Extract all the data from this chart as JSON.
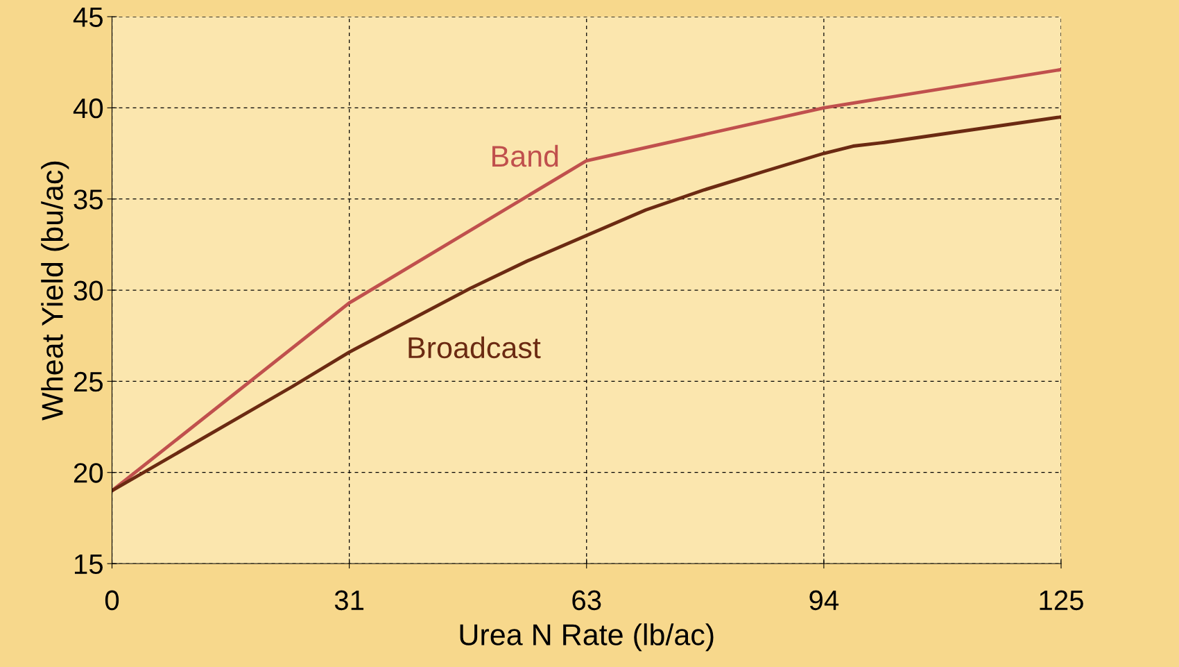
{
  "chart_data": {
    "type": "line",
    "xlabel": "Urea N Rate (lb/ac)",
    "ylabel": "Wheat Yield (bu/ac)",
    "xlim": [
      0,
      125
    ],
    "ylim": [
      15,
      45
    ],
    "xticks": [
      0,
      {
        "value": 31.25,
        "label": "31"
      },
      {
        "value": 62.5,
        "label": "63"
      },
      {
        "value": 93.75,
        "label": "94"
      },
      125
    ],
    "yticks": [
      15,
      20,
      25,
      30,
      35,
      40,
      45
    ],
    "grid": true,
    "legend": false,
    "marker": "none",
    "line_style": "solid",
    "series": [
      {
        "name": "Band",
        "color": "#c0504d",
        "x": [
          0,
          31.25,
          62.5,
          93.75,
          125
        ],
        "values": [
          19.0,
          29.3,
          37.1,
          40.0,
          42.1
        ]
      },
      {
        "name": "Broadcast",
        "color": "#6b2a12",
        "x": [
          0,
          23.7,
          31.25,
          47.2,
          54.7,
          62.5,
          70.3,
          78.0,
          85.8,
          93.75,
          97.6,
          101.7,
          125
        ],
        "values": [
          19.0,
          24.7,
          26.6,
          30.1,
          31.6,
          33.0,
          34.4,
          35.5,
          36.5,
          37.5,
          37.9,
          38.1,
          39.5
        ]
      }
    ]
  }
}
